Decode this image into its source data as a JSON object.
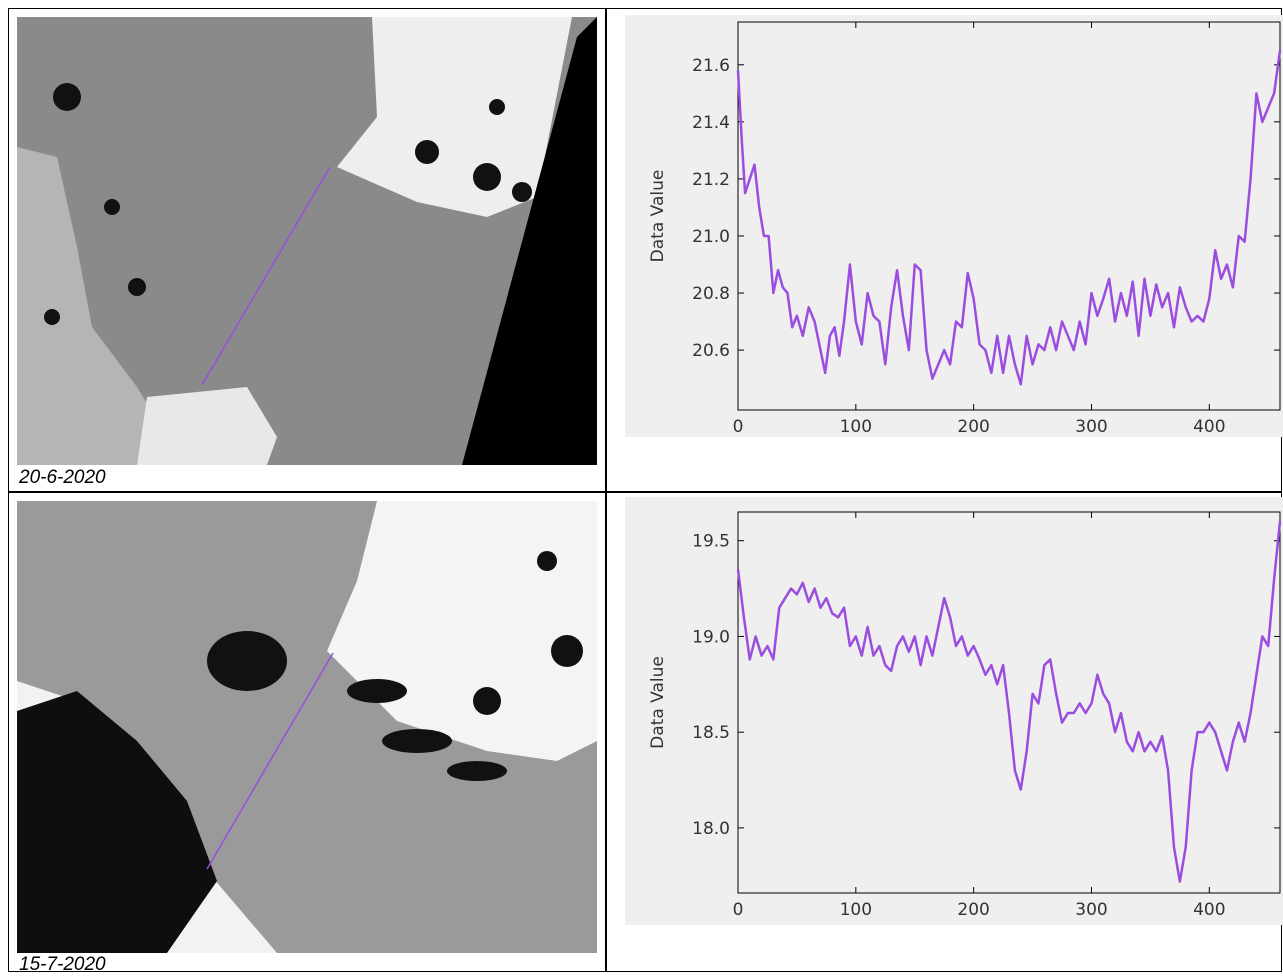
{
  "captions": [
    "20-6-2020",
    "15-7-2020"
  ],
  "chart_data": [
    {
      "type": "line",
      "y_label": "Data Value",
      "color": "#9b4de0",
      "xlim": [
        0,
        460
      ],
      "ylim": [
        20.39,
        21.75
      ],
      "xticks": [
        0,
        100,
        200,
        300,
        400
      ],
      "yticks": [
        20.6,
        20.8,
        {
          "value": 21,
          "label": "21.0"
        },
        21.2,
        21.4,
        21.6
      ],
      "x": [
        0,
        3,
        6,
        10,
        14,
        18,
        22,
        26,
        30,
        34,
        38,
        42,
        46,
        50,
        55,
        60,
        65,
        70,
        74,
        78,
        82,
        86,
        90,
        95,
        100,
        105,
        110,
        115,
        120,
        125,
        130,
        135,
        140,
        145,
        150,
        155,
        160,
        165,
        170,
        175,
        180,
        185,
        190,
        195,
        200,
        205,
        210,
        215,
        220,
        225,
        230,
        235,
        240,
        245,
        250,
        255,
        260,
        265,
        270,
        275,
        280,
        285,
        290,
        295,
        300,
        305,
        310,
        315,
        320,
        325,
        330,
        335,
        340,
        345,
        350,
        355,
        360,
        365,
        370,
        375,
        380,
        385,
        390,
        395,
        400,
        405,
        410,
        415,
        420,
        425,
        430,
        435,
        440,
        445,
        450,
        455,
        460
      ],
      "values": [
        21.58,
        21.35,
        21.15,
        21.2,
        21.25,
        21.1,
        21.0,
        21.0,
        20.8,
        20.88,
        20.82,
        20.8,
        20.68,
        20.72,
        20.65,
        20.75,
        20.7,
        20.6,
        20.52,
        20.65,
        20.68,
        20.58,
        20.7,
        20.9,
        20.7,
        20.62,
        20.8,
        20.72,
        20.7,
        20.55,
        20.75,
        20.88,
        20.72,
        20.6,
        20.9,
        20.88,
        20.6,
        20.5,
        20.55,
        20.6,
        20.55,
        20.7,
        20.68,
        20.87,
        20.78,
        20.62,
        20.6,
        20.52,
        20.65,
        20.52,
        20.65,
        20.55,
        20.48,
        20.65,
        20.55,
        20.62,
        20.6,
        20.68,
        20.6,
        20.7,
        20.65,
        20.6,
        20.7,
        20.62,
        20.8,
        20.72,
        20.78,
        20.85,
        20.7,
        20.8,
        20.72,
        20.84,
        20.65,
        20.85,
        20.72,
        20.83,
        20.75,
        20.8,
        20.68,
        20.82,
        20.75,
        20.7,
        20.72,
        20.7,
        20.78,
        20.95,
        20.85,
        20.9,
        20.82,
        21.0,
        20.98,
        21.2,
        21.5,
        21.4,
        21.45,
        21.5,
        21.65
      ]
    },
    {
      "type": "line",
      "y_label": "Data Value",
      "color": "#9b4de0",
      "xlim": [
        0,
        460
      ],
      "ylim": [
        17.66,
        19.65
      ],
      "xticks": [
        0,
        100,
        200,
        300,
        400
      ],
      "yticks": [
        {
          "value": 18,
          "label": "18.0"
        },
        18.5,
        {
          "value": 19,
          "label": "19.0"
        },
        19.5
      ],
      "x": [
        0,
        5,
        10,
        15,
        20,
        25,
        30,
        35,
        40,
        45,
        50,
        55,
        60,
        65,
        70,
        75,
        80,
        85,
        90,
        95,
        100,
        105,
        110,
        115,
        120,
        125,
        130,
        135,
        140,
        145,
        150,
        155,
        160,
        165,
        170,
        175,
        180,
        185,
        190,
        195,
        200,
        205,
        210,
        215,
        220,
        225,
        230,
        235,
        240,
        245,
        250,
        255,
        260,
        265,
        270,
        275,
        280,
        285,
        290,
        295,
        300,
        305,
        310,
        315,
        320,
        325,
        330,
        335,
        340,
        345,
        350,
        355,
        360,
        365,
        370,
        375,
        380,
        385,
        390,
        395,
        400,
        405,
        410,
        415,
        420,
        425,
        430,
        435,
        440,
        445,
        450,
        455,
        460
      ],
      "values": [
        19.35,
        19.1,
        18.88,
        19.0,
        18.9,
        18.95,
        18.88,
        19.15,
        19.2,
        19.25,
        19.22,
        19.28,
        19.18,
        19.25,
        19.15,
        19.2,
        19.12,
        19.1,
        19.15,
        18.95,
        19.0,
        18.9,
        19.05,
        18.9,
        18.95,
        18.85,
        18.82,
        18.95,
        19.0,
        18.92,
        19.0,
        18.85,
        19.0,
        18.9,
        19.05,
        19.2,
        19.1,
        18.95,
        19.0,
        18.9,
        18.95,
        18.88,
        18.8,
        18.85,
        18.75,
        18.85,
        18.6,
        18.3,
        18.2,
        18.4,
        18.7,
        18.65,
        18.85,
        18.88,
        18.7,
        18.55,
        18.6,
        18.6,
        18.65,
        18.6,
        18.65,
        18.8,
        18.7,
        18.65,
        18.5,
        18.6,
        18.45,
        18.4,
        18.5,
        18.4,
        18.45,
        18.4,
        18.48,
        18.3,
        17.9,
        17.72,
        17.9,
        18.3,
        18.5,
        18.5,
        18.55,
        18.5,
        18.4,
        18.3,
        18.45,
        18.55,
        18.45,
        18.6,
        18.8,
        19.0,
        18.95,
        19.3,
        19.6
      ]
    }
  ]
}
